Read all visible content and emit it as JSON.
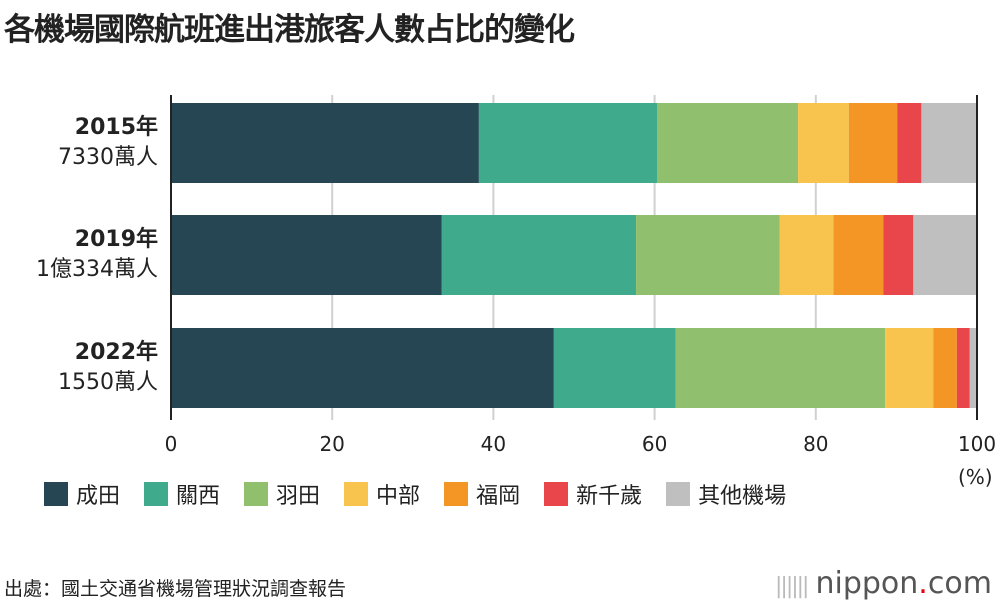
{
  "title": "各機場國際航班進出港旅客人數占比的變化",
  "chart_data": {
    "type": "bar",
    "orientation": "horizontal-stacked",
    "title": "各機場國際航班進出港旅客人數占比的變化",
    "categories": [
      {
        "year": "2015年",
        "total": "7330萬人"
      },
      {
        "year": "2019年",
        "total": "1億334萬人"
      },
      {
        "year": "2022年",
        "total": "1550萬人"
      }
    ],
    "series": [
      {
        "name": "成田",
        "color": "#264653",
        "values": [
          38.2,
          33.6,
          47.5
        ]
      },
      {
        "name": "關西",
        "color": "#3fab8c",
        "values": [
          22.1,
          24.1,
          15.1
        ]
      },
      {
        "name": "羽田",
        "color": "#90bf6e",
        "values": [
          17.5,
          17.8,
          26.0
        ]
      },
      {
        "name": "中部",
        "color": "#f8c44e",
        "values": [
          6.3,
          6.7,
          6.0
        ]
      },
      {
        "name": "福岡",
        "color": "#f39626",
        "values": [
          6.0,
          6.2,
          2.9
        ]
      },
      {
        "name": "新千歲",
        "color": "#e8464b",
        "values": [
          3.0,
          3.7,
          1.6
        ]
      },
      {
        "name": "其他機場",
        "color": "#bfbfbf",
        "values": [
          6.9,
          7.9,
          0.9
        ]
      }
    ],
    "xlim": [
      0,
      100
    ],
    "xticks": [
      "0",
      "20",
      "40",
      "60",
      "80",
      "100"
    ],
    "xunit": "(%)",
    "grid": true,
    "legend": "bottom"
  },
  "source": "出處：國土交通省機場管理狀況調查報告",
  "logo": {
    "name": "nippon",
    "dot": ".",
    "suffix": "com"
  }
}
